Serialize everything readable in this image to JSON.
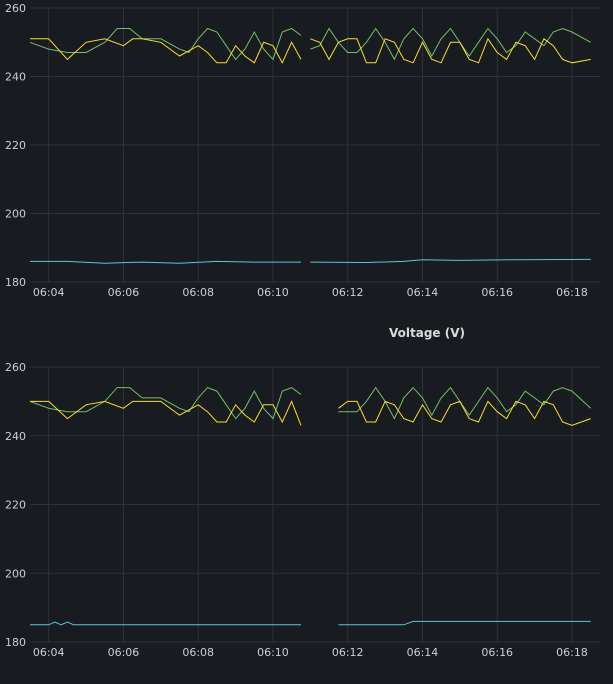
{
  "chart_data": [
    {
      "type": "line",
      "title": "",
      "ylim": [
        180,
        260
      ],
      "yticks": [
        180,
        200,
        220,
        240,
        260
      ],
      "x_range": [
        "06:03:30",
        "06:18:45"
      ],
      "xticks": [
        "06:04",
        "06:06",
        "06:08",
        "06:10",
        "06:12",
        "06:14",
        "06:16",
        "06:18"
      ],
      "gap": [
        "06:10:45",
        "06:11:00"
      ],
      "series": [
        {
          "color": "#73bf69",
          "points": [
            [
              "06:03:30",
              250
            ],
            [
              "06:04:00",
              248
            ],
            [
              "06:04:30",
              247
            ],
            [
              "06:05:00",
              247
            ],
            [
              "06:05:30",
              250
            ],
            [
              "06:05:50",
              254
            ],
            [
              "06:06:10",
              254
            ],
            [
              "06:06:30",
              251
            ],
            [
              "06:07:00",
              251
            ],
            [
              "06:07:30",
              248
            ],
            [
              "06:07:45",
              247
            ],
            [
              "06:08:00",
              251
            ],
            [
              "06:08:15",
              254
            ],
            [
              "06:08:30",
              253
            ],
            [
              "06:08:45",
              249
            ],
            [
              "06:09:00",
              245
            ],
            [
              "06:09:15",
              248
            ],
            [
              "06:09:30",
              253
            ],
            [
              "06:09:45",
              248
            ],
            [
              "06:10:00",
              245
            ],
            [
              "06:10:15",
              253
            ],
            [
              "06:10:30",
              254
            ],
            [
              "06:10:45",
              252
            ],
            [
              "06:11:00",
              248
            ],
            [
              "06:11:15",
              249
            ],
            [
              "06:11:30",
              254
            ],
            [
              "06:11:45",
              250
            ],
            [
              "06:12:00",
              247
            ],
            [
              "06:12:15",
              247
            ],
            [
              "06:12:30",
              250
            ],
            [
              "06:12:45",
              254
            ],
            [
              "06:13:00",
              250
            ],
            [
              "06:13:15",
              245
            ],
            [
              "06:13:30",
              251
            ],
            [
              "06:13:45",
              254
            ],
            [
              "06:14:00",
              251
            ],
            [
              "06:14:15",
              246
            ],
            [
              "06:14:30",
              251
            ],
            [
              "06:14:45",
              254
            ],
            [
              "06:15:00",
              250
            ],
            [
              "06:15:15",
              246
            ],
            [
              "06:15:30",
              250
            ],
            [
              "06:15:45",
              254
            ],
            [
              "06:16:00",
              251
            ],
            [
              "06:16:15",
              247
            ],
            [
              "06:16:30",
              249
            ],
            [
              "06:16:45",
              253
            ],
            [
              "06:17:00",
              251
            ],
            [
              "06:17:15",
              249
            ],
            [
              "06:17:30",
              253
            ],
            [
              "06:17:45",
              254
            ],
            [
              "06:18:00",
              253
            ],
            [
              "06:18:30",
              250
            ]
          ]
        },
        {
          "color": "#fade2a",
          "points": [
            [
              "06:03:30",
              251
            ],
            [
              "06:04:00",
              251
            ],
            [
              "06:04:30",
              245
            ],
            [
              "06:05:00",
              250
            ],
            [
              "06:05:30",
              251
            ],
            [
              "06:06:00",
              249
            ],
            [
              "06:06:15",
              251
            ],
            [
              "06:06:30",
              251
            ],
            [
              "06:07:00",
              250
            ],
            [
              "06:07:30",
              246
            ],
            [
              "06:08:00",
              249
            ],
            [
              "06:08:15",
              247
            ],
            [
              "06:08:30",
              244
            ],
            [
              "06:08:45",
              244
            ],
            [
              "06:09:00",
              249
            ],
            [
              "06:09:15",
              246
            ],
            [
              "06:09:30",
              244
            ],
            [
              "06:09:45",
              250
            ],
            [
              "06:10:00",
              249
            ],
            [
              "06:10:15",
              244
            ],
            [
              "06:10:30",
              250
            ],
            [
              "06:10:45",
              245
            ],
            [
              "06:11:00",
              251
            ],
            [
              "06:11:15",
              250
            ],
            [
              "06:11:30",
              245
            ],
            [
              "06:11:45",
              250
            ],
            [
              "06:12:00",
              251
            ],
            [
              "06:12:15",
              251
            ],
            [
              "06:12:30",
              244
            ],
            [
              "06:12:45",
              244
            ],
            [
              "06:13:00",
              251
            ],
            [
              "06:13:15",
              250
            ],
            [
              "06:13:30",
              245
            ],
            [
              "06:13:45",
              244
            ],
            [
              "06:14:00",
              250
            ],
            [
              "06:14:15",
              245
            ],
            [
              "06:14:30",
              244
            ],
            [
              "06:14:45",
              250
            ],
            [
              "06:15:00",
              250
            ],
            [
              "06:15:15",
              245
            ],
            [
              "06:15:30",
              244
            ],
            [
              "06:15:45",
              251
            ],
            [
              "06:16:00",
              247
            ],
            [
              "06:16:15",
              245
            ],
            [
              "06:16:30",
              250
            ],
            [
              "06:16:45",
              249
            ],
            [
              "06:17:00",
              245
            ],
            [
              "06:17:15",
              251
            ],
            [
              "06:17:30",
              249
            ],
            [
              "06:17:45",
              245
            ],
            [
              "06:18:00",
              244
            ],
            [
              "06:18:30",
              245
            ]
          ]
        },
        {
          "color": "#5ec4db",
          "points": [
            [
              "06:03:30",
              186
            ],
            [
              "06:04:30",
              186
            ],
            [
              "06:05:30",
              185.5
            ],
            [
              "06:06:30",
              185.8
            ],
            [
              "06:07:30",
              185.5
            ],
            [
              "06:08:30",
              186
            ],
            [
              "06:09:30",
              185.8
            ],
            [
              "06:10:45",
              185.8
            ],
            [
              "06:11:00",
              185.8
            ],
            [
              "06:12:30",
              185.7
            ],
            [
              "06:13:30",
              186
            ],
            [
              "06:14:00",
              186.5
            ],
            [
              "06:15:00",
              186.3
            ],
            [
              "06:16:30",
              186.5
            ],
            [
              "06:18:30",
              186.6
            ]
          ]
        }
      ]
    },
    {
      "type": "line",
      "title": "Voltage (V)",
      "ylim": [
        180,
        260
      ],
      "yticks": [
        180,
        200,
        220,
        240,
        260
      ],
      "x_range": [
        "06:03:30",
        "06:18:45"
      ],
      "xticks": [
        "06:04",
        "06:06",
        "06:08",
        "06:10",
        "06:12",
        "06:14",
        "06:16",
        "06:18"
      ],
      "gap": [
        "06:10:45",
        "06:11:45"
      ],
      "series": [
        {
          "color": "#73bf69",
          "points": [
            [
              "06:03:30",
              250
            ],
            [
              "06:04:00",
              248
            ],
            [
              "06:04:30",
              247
            ],
            [
              "06:05:00",
              247
            ],
            [
              "06:05:30",
              250
            ],
            [
              "06:05:50",
              254
            ],
            [
              "06:06:10",
              254
            ],
            [
              "06:06:30",
              251
            ],
            [
              "06:07:00",
              251
            ],
            [
              "06:07:30",
              248
            ],
            [
              "06:07:45",
              247
            ],
            [
              "06:08:00",
              251
            ],
            [
              "06:08:15",
              254
            ],
            [
              "06:08:30",
              253
            ],
            [
              "06:08:45",
              249
            ],
            [
              "06:09:00",
              245
            ],
            [
              "06:09:15",
              248
            ],
            [
              "06:09:30",
              253
            ],
            [
              "06:09:45",
              248
            ],
            [
              "06:10:00",
              245
            ],
            [
              "06:10:15",
              253
            ],
            [
              "06:10:30",
              254
            ],
            [
              "06:10:45",
              252
            ],
            [
              "06:11:45",
              247
            ],
            [
              "06:12:15",
              247
            ],
            [
              "06:12:30",
              250
            ],
            [
              "06:12:45",
              254
            ],
            [
              "06:13:00",
              250
            ],
            [
              "06:13:15",
              245
            ],
            [
              "06:13:30",
              251
            ],
            [
              "06:13:45",
              254
            ],
            [
              "06:14:00",
              251
            ],
            [
              "06:14:15",
              246
            ],
            [
              "06:14:30",
              251
            ],
            [
              "06:14:45",
              254
            ],
            [
              "06:15:00",
              250
            ],
            [
              "06:15:15",
              246
            ],
            [
              "06:15:30",
              250
            ],
            [
              "06:15:45",
              254
            ],
            [
              "06:16:00",
              251
            ],
            [
              "06:16:15",
              247
            ],
            [
              "06:16:30",
              249
            ],
            [
              "06:16:45",
              253
            ],
            [
              "06:17:00",
              251
            ],
            [
              "06:17:15",
              249
            ],
            [
              "06:17:30",
              253
            ],
            [
              "06:17:45",
              254
            ],
            [
              "06:18:00",
              253
            ],
            [
              "06:18:30",
              248
            ]
          ]
        },
        {
          "color": "#fade2a",
          "points": [
            [
              "06:03:30",
              250
            ],
            [
              "06:04:00",
              250
            ],
            [
              "06:04:30",
              245
            ],
            [
              "06:05:00",
              249
            ],
            [
              "06:05:30",
              250
            ],
            [
              "06:06:00",
              248
            ],
            [
              "06:06:15",
              250
            ],
            [
              "06:06:30",
              250
            ],
            [
              "06:07:00",
              250
            ],
            [
              "06:07:30",
              246
            ],
            [
              "06:08:00",
              249
            ],
            [
              "06:08:15",
              247
            ],
            [
              "06:08:30",
              244
            ],
            [
              "06:08:45",
              244
            ],
            [
              "06:09:00",
              249
            ],
            [
              "06:09:15",
              246
            ],
            [
              "06:09:30",
              244
            ],
            [
              "06:09:45",
              249
            ],
            [
              "06:10:00",
              249
            ],
            [
              "06:10:15",
              244
            ],
            [
              "06:10:30",
              250
            ],
            [
              "06:10:45",
              243
            ],
            [
              "06:11:45",
              248
            ],
            [
              "06:12:00",
              250
            ],
            [
              "06:12:15",
              250
            ],
            [
              "06:12:30",
              244
            ],
            [
              "06:12:45",
              244
            ],
            [
              "06:13:00",
              250
            ],
            [
              "06:13:15",
              249
            ],
            [
              "06:13:30",
              245
            ],
            [
              "06:13:45",
              244
            ],
            [
              "06:14:00",
              249
            ],
            [
              "06:14:15",
              245
            ],
            [
              "06:14:30",
              244
            ],
            [
              "06:14:45",
              249
            ],
            [
              "06:15:00",
              250
            ],
            [
              "06:15:15",
              245
            ],
            [
              "06:15:30",
              244
            ],
            [
              "06:15:45",
              250
            ],
            [
              "06:16:00",
              247
            ],
            [
              "06:16:15",
              245
            ],
            [
              "06:16:30",
              250
            ],
            [
              "06:16:45",
              249
            ],
            [
              "06:17:00",
              245
            ],
            [
              "06:17:15",
              250
            ],
            [
              "06:17:30",
              249
            ],
            [
              "06:17:45",
              244
            ],
            [
              "06:18:00",
              243
            ],
            [
              "06:18:30",
              245
            ]
          ]
        },
        {
          "color": "#5ec4db",
          "points": [
            [
              "06:03:30",
              185
            ],
            [
              "06:04:00",
              185
            ],
            [
              "06:04:10",
              185.8
            ],
            [
              "06:04:20",
              185
            ],
            [
              "06:04:30",
              185.8
            ],
            [
              "06:04:40",
              185
            ],
            [
              "06:10:45",
              185
            ],
            [
              "06:11:45",
              185
            ],
            [
              "06:13:30",
              185
            ],
            [
              "06:13:45",
              186
            ],
            [
              "06:18:30",
              186
            ]
          ]
        }
      ]
    }
  ]
}
